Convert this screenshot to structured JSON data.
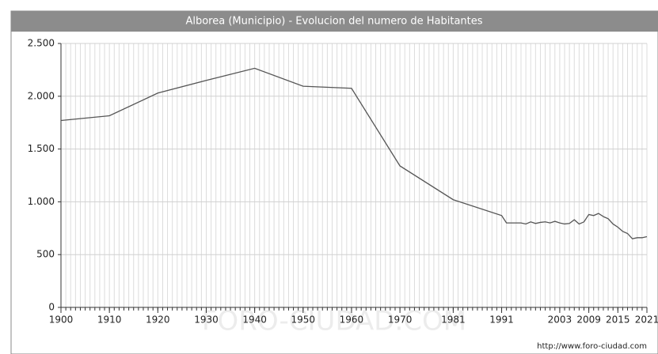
{
  "chart_data": {
    "type": "line",
    "title": "Alborea (Municipio) - Evolucion del numero de Habitantes",
    "source": "http://www.foro-ciudad.com",
    "watermark": "FORO-CIUDAD.COM",
    "x": [
      1900,
      1910,
      1920,
      1930,
      1940,
      1950,
      1960,
      1970,
      1981,
      1991,
      1992,
      1995,
      1996,
      1997,
      1998,
      1999,
      2000,
      2001,
      2002,
      2003,
      2004,
      2005,
      2006,
      2007,
      2008,
      2009,
      2010,
      2011,
      2012,
      2013,
      2014,
      2015,
      2016,
      2017,
      2018,
      2019,
      2020,
      2021
    ],
    "series": [
      {
        "color": "#555555",
        "values": [
          1770,
          1815,
          2030,
          2150,
          2265,
          2095,
          2075,
          1340,
          1020,
          870,
          800,
          800,
          790,
          810,
          795,
          805,
          810,
          800,
          815,
          800,
          790,
          795,
          830,
          790,
          810,
          880,
          870,
          890,
          860,
          840,
          790,
          760,
          720,
          700,
          650,
          660,
          660,
          670
        ]
      }
    ],
    "xlim": [
      1900,
      2021
    ],
    "xticks": [
      1900,
      1910,
      1920,
      1930,
      1940,
      1950,
      1960,
      1970,
      1981,
      1991,
      2003,
      2009,
      2015,
      2021
    ],
    "ylim": [
      0,
      2500
    ],
    "yticks": [
      0,
      500,
      {
        "value": 1000,
        "label": "1.000"
      },
      {
        "value": 1500,
        "label": "1.500"
      },
      {
        "value": 2000,
        "label": "2.000"
      },
      {
        "value": 2500,
        "label": "2.500"
      }
    ],
    "grid": true
  }
}
